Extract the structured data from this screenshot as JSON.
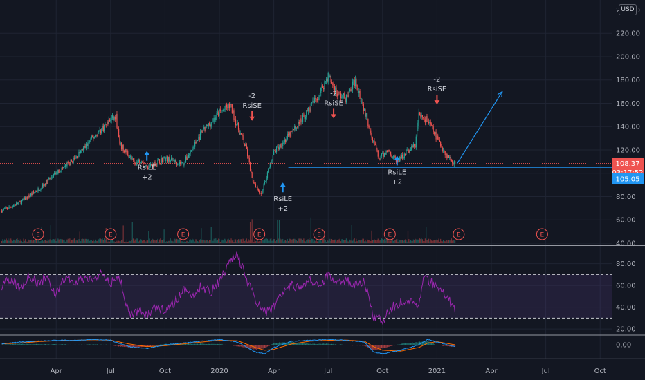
{
  "currency": "USD",
  "colors": {
    "background": "#131722",
    "grid": "#1f2433",
    "up": "#26a69a",
    "down": "#ef5350",
    "rsi": "#9c27b0",
    "macd": "#2196f3",
    "signal": "#ff6d00",
    "short_arrow": "#ef5350",
    "long_arrow": "#2196f3"
  },
  "chart_data": {
    "type": "candlestick",
    "x_ticks": [
      {
        "label": "Apr",
        "month": 3
      },
      {
        "label": "Jul",
        "month": 6
      },
      {
        "label": "Oct",
        "month": 9
      },
      {
        "label": "2020",
        "month": 12
      },
      {
        "label": "Apr",
        "month": 15
      },
      {
        "label": "Jul",
        "month": 18
      },
      {
        "label": "Oct",
        "month": 21
      },
      {
        "label": "2021",
        "month": 24
      },
      {
        "label": "Apr",
        "month": 27
      },
      {
        "label": "Jul",
        "month": 30
      },
      {
        "label": "Oct",
        "month": 33
      }
    ],
    "price_axis": {
      "ticks": [
        "240.00",
        "220.00",
        "200.00",
        "180.00",
        "160.00",
        "140.00",
        "120.00",
        "100.00",
        "80.00",
        "60.00",
        "40.00"
      ],
      "range": [
        40,
        245
      ]
    },
    "price_path": [
      [
        0,
        68
      ],
      [
        1,
        75
      ],
      [
        2,
        86
      ],
      [
        3,
        100
      ],
      [
        4,
        112
      ],
      [
        5,
        130
      ],
      [
        6,
        146
      ],
      [
        6.3,
        148
      ],
      [
        6.5,
        124
      ],
      [
        7,
        116
      ],
      [
        7.3,
        108
      ],
      [
        7.7,
        112
      ],
      [
        8,
        105
      ],
      [
        9,
        113
      ],
      [
        10,
        108
      ],
      [
        11,
        134
      ],
      [
        12,
        152
      ],
      [
        12.6,
        158
      ],
      [
        13,
        140
      ],
      [
        13.5,
        120
      ],
      [
        13.8,
        95
      ],
      [
        14.3,
        82
      ],
      [
        15,
        118
      ],
      [
        16,
        135
      ],
      [
        17,
        156
      ],
      [
        17.5,
        168
      ],
      [
        18,
        184
      ],
      [
        18.5,
        168
      ],
      [
        19,
        164
      ],
      [
        19.5,
        180
      ],
      [
        20.5,
        128
      ],
      [
        20.8,
        112
      ],
      [
        21.3,
        120
      ],
      [
        21.8,
        110
      ],
      [
        22.3,
        118
      ],
      [
        22.8,
        124
      ],
      [
        23,
        150
      ],
      [
        23.5,
        145
      ],
      [
        24,
        130
      ],
      [
        24.5,
        116
      ],
      [
        25,
        108
      ]
    ],
    "projection": {
      "from": [
        25.1,
        108
      ],
      "to": [
        27.6,
        170
      ]
    },
    "horizontal_lines": [
      {
        "price": 108.37,
        "style": "dotted"
      },
      {
        "price": 105.05,
        "style": "solid"
      }
    ],
    "price_badges": [
      {
        "text": "108.37",
        "price": 108.37,
        "color": "#ef5350"
      },
      {
        "text": "03:17:52",
        "price": 100.8,
        "color": "#ef5350"
      },
      {
        "text": "105.05",
        "price": 95.2,
        "color": "#2196f3"
      }
    ],
    "signals": [
      {
        "type": "long",
        "month": 8,
        "price": 119,
        "label1": "RsiLE",
        "label2": "+2"
      },
      {
        "type": "short",
        "month": 13.8,
        "price": 145,
        "label1": "-2",
        "label2": "RsiSE"
      },
      {
        "type": "long",
        "month": 15.5,
        "price": 92,
        "label1": "RsiLE",
        "label2": "+2"
      },
      {
        "type": "short",
        "month": 18.3,
        "price": 147,
        "label1": "-2",
        "label2": "RsiSE"
      },
      {
        "type": "long",
        "month": 21.8,
        "price": 115,
        "label1": "RsiLE",
        "label2": "+2"
      },
      {
        "type": "short",
        "month": 24,
        "price": 159,
        "label1": "-2",
        "label2": "RsiSE"
      }
    ],
    "earnings_months": [
      2,
      6,
      10,
      14.2,
      17.5,
      21.4,
      25.2,
      29.8
    ],
    "earnings_label": "E",
    "rsi": {
      "axis_ticks": [
        "80.00",
        "60.00",
        "40.00",
        "20.00"
      ],
      "range": [
        15,
        95
      ],
      "levels": [
        70,
        30
      ],
      "path": [
        [
          0,
          60
        ],
        [
          0.5,
          66
        ],
        [
          1,
          56
        ],
        [
          1.5,
          70
        ],
        [
          2,
          62
        ],
        [
          2.5,
          68
        ],
        [
          3,
          52
        ],
        [
          3.5,
          68
        ],
        [
          4,
          62
        ],
        [
          4.5,
          66
        ],
        [
          5,
          64
        ],
        [
          5.5,
          70
        ],
        [
          6,
          62
        ],
        [
          6.5,
          68
        ],
        [
          7,
          33
        ],
        [
          7.5,
          36
        ],
        [
          8,
          33
        ],
        [
          8.5,
          40
        ],
        [
          9,
          37
        ],
        [
          9.5,
          44
        ],
        [
          10,
          56
        ],
        [
          10.5,
          50
        ],
        [
          11,
          60
        ],
        [
          11.5,
          54
        ],
        [
          12,
          64
        ],
        [
          12.6,
          82
        ],
        [
          13,
          88
        ],
        [
          13.5,
          66
        ],
        [
          14,
          46
        ],
        [
          14.5,
          36
        ],
        [
          15,
          40
        ],
        [
          15.5,
          52
        ],
        [
          16,
          60
        ],
        [
          16.5,
          56
        ],
        [
          17,
          66
        ],
        [
          17.5,
          60
        ],
        [
          18,
          70
        ],
        [
          18.5,
          62
        ],
        [
          19,
          64
        ],
        [
          19.5,
          60
        ],
        [
          20,
          64
        ],
        [
          20.5,
          30
        ],
        [
          21,
          28
        ],
        [
          21.5,
          40
        ],
        [
          22,
          44
        ],
        [
          22.5,
          46
        ],
        [
          23,
          40
        ],
        [
          23.3,
          70
        ],
        [
          23.6,
          64
        ],
        [
          24,
          58
        ],
        [
          24.5,
          50
        ],
        [
          25,
          38
        ]
      ]
    },
    "macd": {
      "axis_ticks": [
        "0.00"
      ],
      "range": [
        -13,
        10
      ],
      "macd": [
        [
          0,
          1
        ],
        [
          1,
          3
        ],
        [
          2,
          4
        ],
        [
          3,
          5
        ],
        [
          4,
          5
        ],
        [
          5,
          6
        ],
        [
          6,
          5
        ],
        [
          7,
          -2
        ],
        [
          8,
          -4
        ],
        [
          9,
          0
        ],
        [
          10,
          2
        ],
        [
          11,
          4
        ],
        [
          12,
          6
        ],
        [
          13,
          3
        ],
        [
          14,
          -8
        ],
        [
          14.5,
          -10
        ],
        [
          15,
          -3
        ],
        [
          16,
          4
        ],
        [
          17,
          5
        ],
        [
          18,
          6
        ],
        [
          19,
          5
        ],
        [
          20,
          3
        ],
        [
          20.5,
          -8
        ],
        [
          21,
          -10
        ],
        [
          22,
          -6
        ],
        [
          23,
          0
        ],
        [
          23.5,
          6
        ],
        [
          24,
          3
        ],
        [
          25,
          -2
        ]
      ],
      "signal": [
        [
          0,
          1
        ],
        [
          1,
          2
        ],
        [
          2,
          3.5
        ],
        [
          3,
          4.5
        ],
        [
          4,
          5
        ],
        [
          5,
          5.5
        ],
        [
          6,
          5.2
        ],
        [
          7,
          1
        ],
        [
          8,
          -2
        ],
        [
          9,
          -1
        ],
        [
          10,
          1
        ],
        [
          11,
          3
        ],
        [
          12,
          5
        ],
        [
          13,
          4.5
        ],
        [
          14,
          -3
        ],
        [
          14.5,
          -6
        ],
        [
          15,
          -5
        ],
        [
          16,
          1
        ],
        [
          17,
          4
        ],
        [
          18,
          5
        ],
        [
          19,
          5.2
        ],
        [
          20,
          4
        ],
        [
          20.5,
          -2
        ],
        [
          21,
          -6
        ],
        [
          22,
          -7
        ],
        [
          23,
          -3
        ],
        [
          23.5,
          2
        ],
        [
          24,
          3.5
        ],
        [
          25,
          0
        ]
      ]
    }
  }
}
